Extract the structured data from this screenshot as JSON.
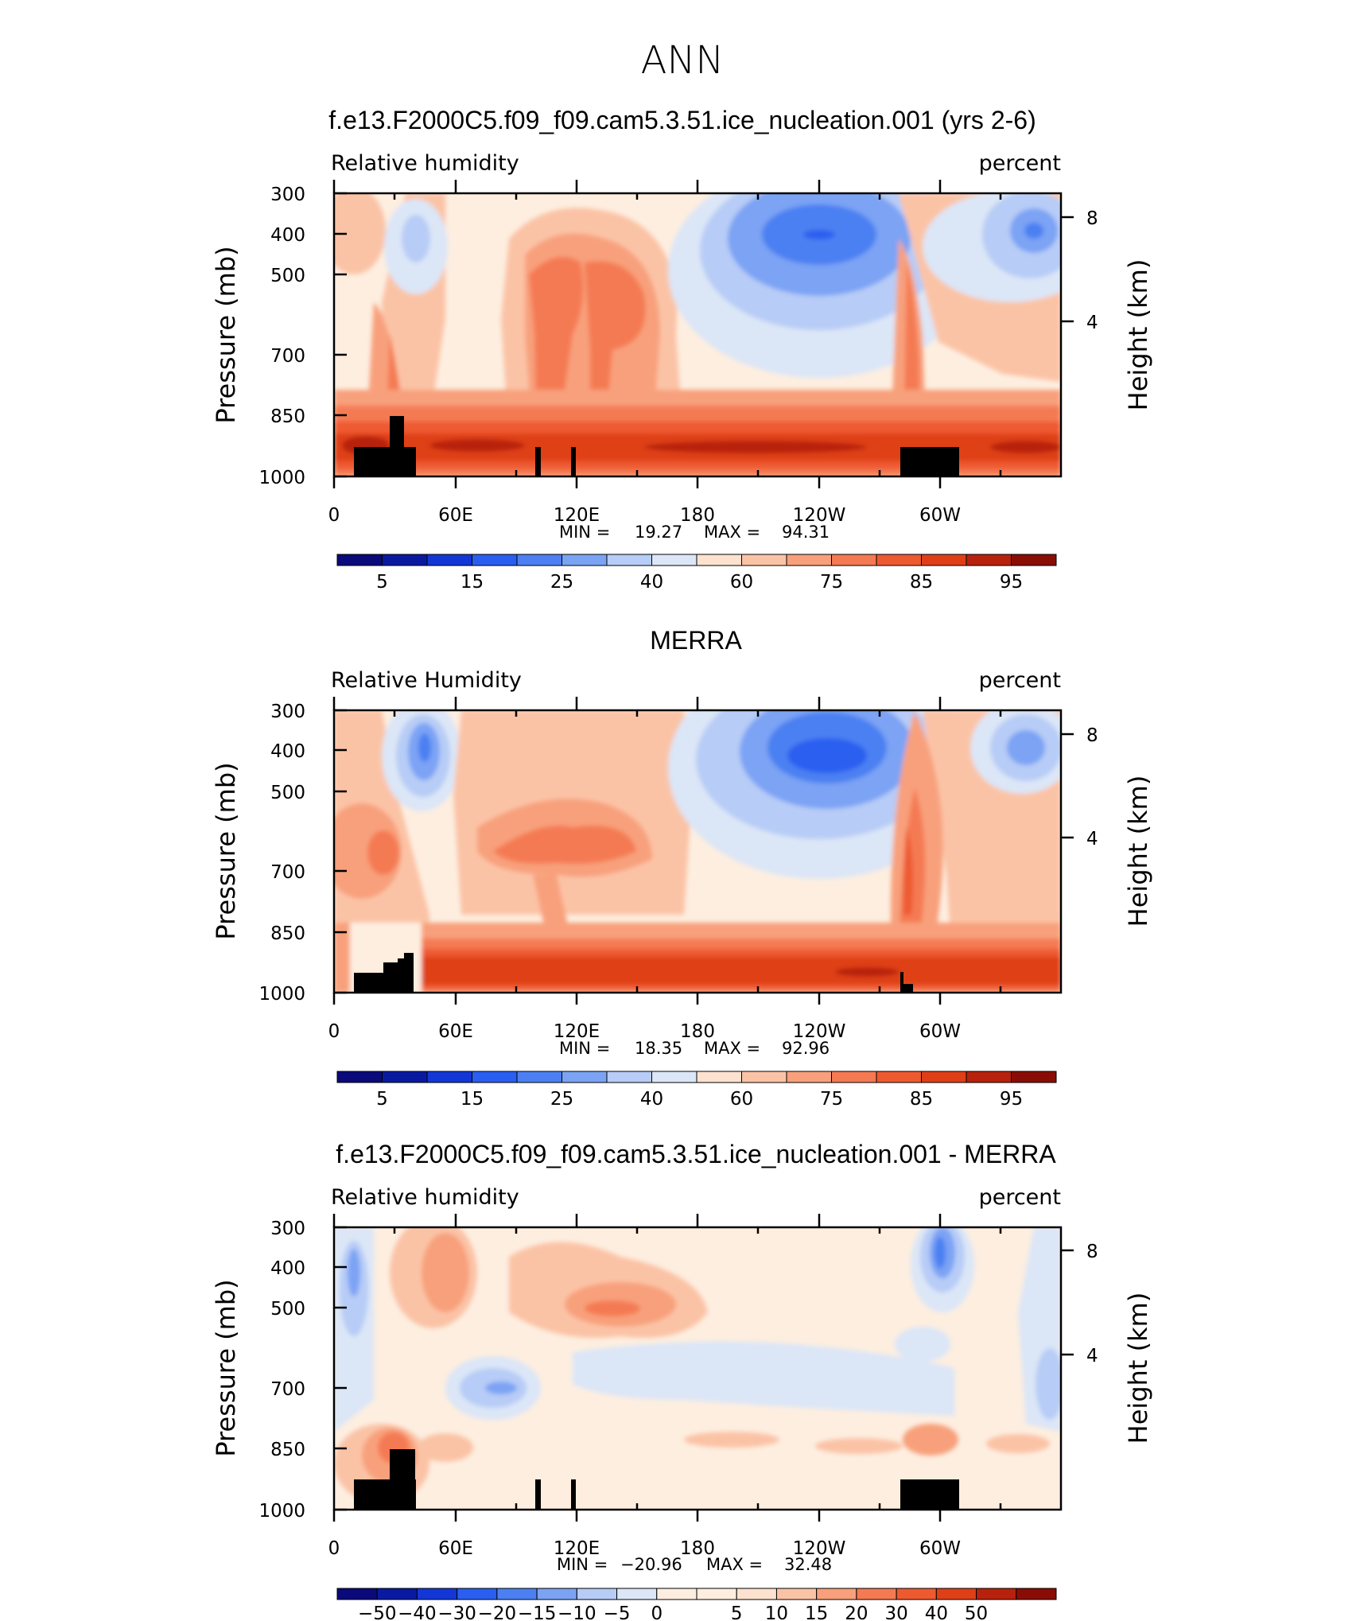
{
  "page_title": "ANN",
  "colors": {
    "blues": [
      "#0a0a7a",
      "#0a1aa0",
      "#1237d6",
      "#2a5ef0",
      "#4c80f2",
      "#7ba3f4",
      "#b7ccf6",
      "#dbe6f7"
    ],
    "neutral": "#fdeee0",
    "reds": [
      "#fde2cf",
      "#fbc3a6",
      "#f8a07c",
      "#f47a52",
      "#ee5a30",
      "#df3f17",
      "#b8220c",
      "#8a0d05"
    ],
    "terrain": "#000000"
  },
  "chart_data": [
    {
      "type": "heatmap",
      "title": "f.e13.F2000C5.f09_f09.cam5.3.51.ice_nucleation.001 (yrs 2-6)",
      "field_label": "Relative humidity",
      "units_label": "percent",
      "ylabel": "Pressure (mb)",
      "ylabel_right": "Height (km)",
      "y_ticks": [
        "300",
        "400",
        "500",
        "700",
        "850",
        "1000"
      ],
      "y_right_ticks": [
        "8",
        "4"
      ],
      "x_ticks": [
        "0",
        "60E",
        "120E",
        "180",
        "120W",
        "60W"
      ],
      "min_label": "MIN =",
      "min_value": "19.27",
      "max_label": "MAX =",
      "max_value": "94.31",
      "colorbar_labels": [
        "5",
        "15",
        "25",
        "40",
        "60",
        "75",
        "85",
        "95"
      ]
    },
    {
      "type": "heatmap",
      "title": "MERRA",
      "field_label": "Relative Humidity",
      "units_label": "percent",
      "ylabel": "Pressure (mb)",
      "ylabel_right": "Height (km)",
      "y_ticks": [
        "300",
        "400",
        "500",
        "700",
        "850",
        "1000"
      ],
      "y_right_ticks": [
        "8",
        "4"
      ],
      "x_ticks": [
        "0",
        "60E",
        "120E",
        "180",
        "120W",
        "60W"
      ],
      "min_label": "MIN =",
      "min_value": "18.35",
      "max_label": "MAX =",
      "max_value": "92.96",
      "colorbar_labels": [
        "5",
        "15",
        "25",
        "40",
        "60",
        "75",
        "85",
        "95"
      ]
    },
    {
      "type": "heatmap",
      "title": "f.e13.F2000C5.f09_f09.cam5.3.51.ice_nucleation.001 - MERRA",
      "field_label": "Relative humidity",
      "units_label": "percent",
      "ylabel": "Pressure (mb)",
      "ylabel_right": "Height (km)",
      "y_ticks": [
        "300",
        "400",
        "500",
        "700",
        "850",
        "1000"
      ],
      "y_right_ticks": [
        "8",
        "4"
      ],
      "x_ticks": [
        "0",
        "60E",
        "120E",
        "180",
        "120W",
        "60W"
      ],
      "min_label": "MIN =",
      "min_value": "−20.96",
      "max_label": "MAX =",
      "max_value": "32.48",
      "colorbar_labels": [
        "−50",
        "−40",
        "−30",
        "−20",
        "−15",
        "−10",
        "−5",
        "0",
        "5",
        "10",
        "15",
        "20",
        "30",
        "40",
        "50"
      ]
    }
  ]
}
